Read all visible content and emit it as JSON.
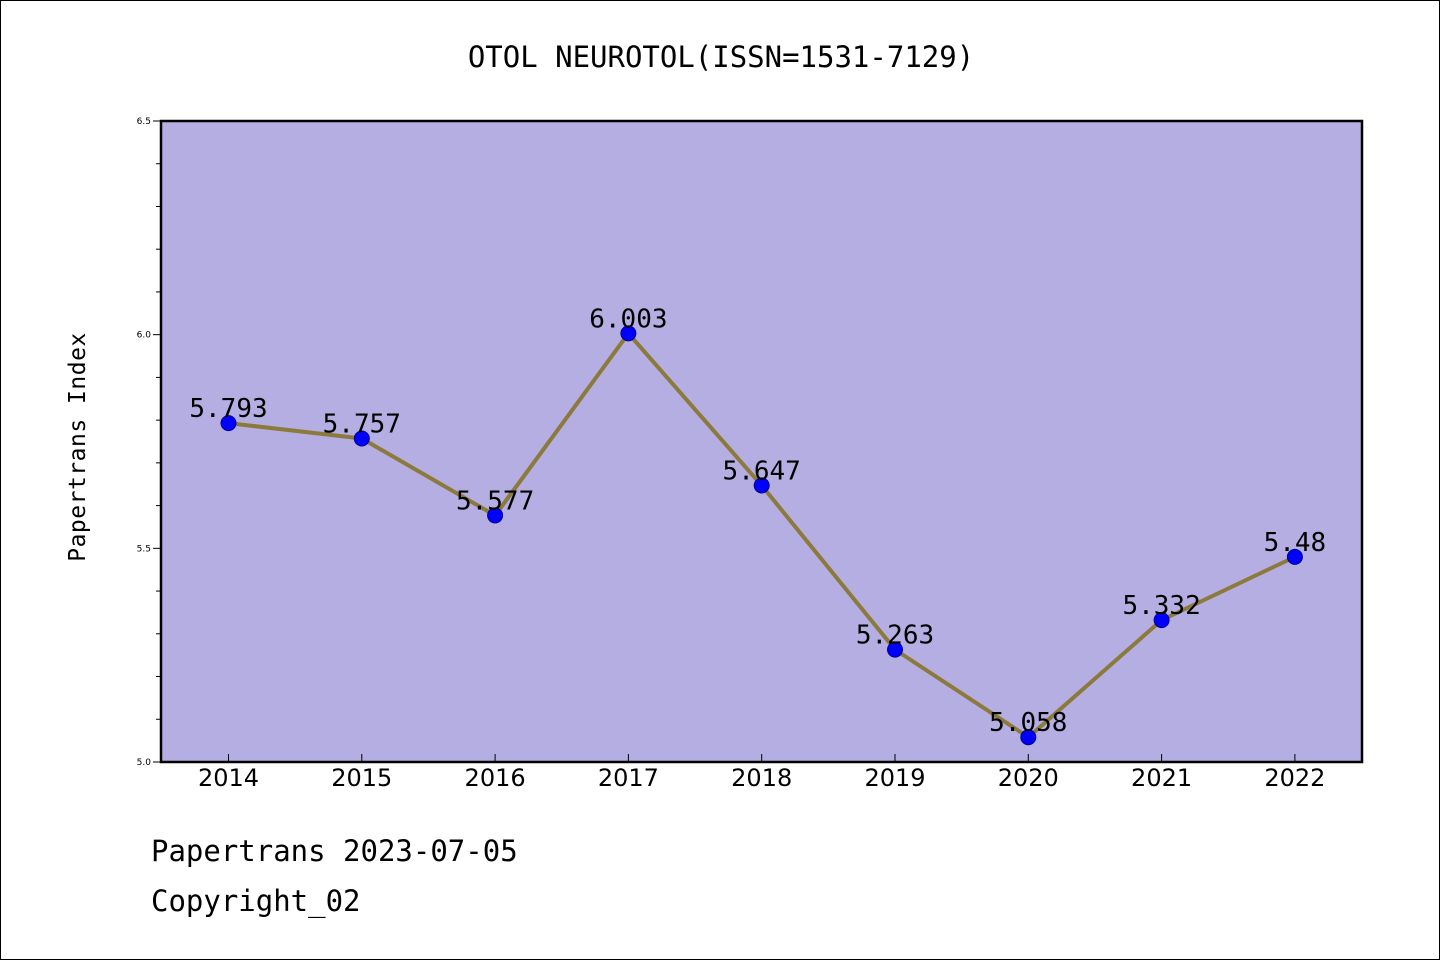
{
  "chart_data": {
    "type": "line",
    "title": "OTOL NEUROTOL(ISSN=1531-7129)",
    "xlabel": "",
    "ylabel": "Papertrans Index",
    "categories": [
      "2014",
      "2015",
      "2016",
      "2017",
      "2018",
      "2019",
      "2020",
      "2021",
      "2022"
    ],
    "series": [
      {
        "values": [
          5.793,
          5.757,
          5.577,
          6.003,
          5.647,
          5.263,
          5.058,
          5.332,
          5.48
        ],
        "labels": [
          "5.793",
          "5.757",
          "5.577",
          "6.003",
          "5.647",
          "5.263",
          "5.058",
          "5.332",
          "5.48"
        ]
      }
    ],
    "ylim": [
      5.0,
      6.5
    ],
    "yticks": [
      "5.0",
      "5.5",
      "6.0",
      "6.5"
    ],
    "grid": false,
    "legend": "none"
  },
  "colors": {
    "plot_background": "#b5aee2",
    "line": "#8c7a3c",
    "marker": "#0000ff"
  },
  "footer": {
    "date_line": "Papertrans 2023-07-05",
    "copyright_line": "Copyright_02"
  }
}
